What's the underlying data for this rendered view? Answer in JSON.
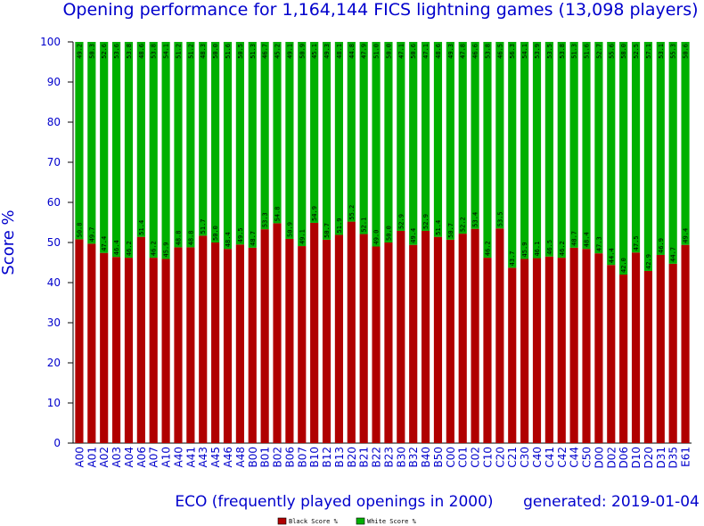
{
  "chart_data": {
    "type": "bar",
    "stacked": true,
    "title": "Opening performance for 1,164,144 FICS lightning games (13,098 players)",
    "xlabel": "ECO (frequently played openings in 2000)",
    "ylabel": "Score %",
    "generated": "generated: 2019-01-04",
    "ylim": [
      0,
      100
    ],
    "yticks": [
      0,
      10,
      20,
      30,
      40,
      50,
      60,
      70,
      80,
      90,
      100
    ],
    "grid": false,
    "legend_position": "bottom-center",
    "categories": [
      "A00",
      "A01",
      "A02",
      "A03",
      "A04",
      "A06",
      "A07",
      "A10",
      "A40",
      "A41",
      "A43",
      "A45",
      "A46",
      "A48",
      "B00",
      "B01",
      "B02",
      "B06",
      "B07",
      "B10",
      "B12",
      "B13",
      "B20",
      "B21",
      "B22",
      "B23",
      "B30",
      "B32",
      "B40",
      "B50",
      "C00",
      "C01",
      "C02",
      "C10",
      "C20",
      "C21",
      "C30",
      "C40",
      "C41",
      "C42",
      "C44",
      "C50",
      "D00",
      "D02",
      "D06",
      "D10",
      "D20",
      "D31",
      "D35",
      "E61"
    ],
    "series": [
      {
        "name": "Black Score %",
        "color": "#b00000",
        "values": [
          50.8,
          49.7,
          47.4,
          46.4,
          46.2,
          51.4,
          46.2,
          45.9,
          48.8,
          48.8,
          51.7,
          50.0,
          48.4,
          49.5,
          48.7,
          53.3,
          54.8,
          50.9,
          49.1,
          54.9,
          50.7,
          51.9,
          55.2,
          52.1,
          49.0,
          50.0,
          52.9,
          49.4,
          52.9,
          51.4,
          50.7,
          52.2,
          53.4,
          46.2,
          53.5,
          43.7,
          45.9,
          46.1,
          46.5,
          46.2,
          48.7,
          48.4,
          47.3,
          44.4,
          42.0,
          47.5,
          42.9,
          46.9,
          44.7,
          49.4
        ]
      },
      {
        "name": "White Score %",
        "color": "#00b000",
        "values": [
          49.2,
          50.3,
          52.6,
          53.6,
          53.8,
          48.6,
          53.8,
          54.1,
          51.2,
          51.2,
          48.3,
          50.0,
          51.6,
          50.5,
          51.3,
          46.7,
          45.2,
          49.1,
          50.9,
          45.1,
          49.3,
          48.1,
          44.8,
          47.9,
          51.0,
          50.0,
          47.1,
          50.6,
          47.1,
          48.6,
          49.3,
          47.8,
          46.6,
          53.8,
          46.5,
          56.3,
          54.1,
          53.9,
          53.5,
          53.8,
          51.3,
          51.6,
          52.7,
          55.6,
          58.0,
          52.5,
          57.1,
          53.1,
          55.3,
          50.6
        ]
      }
    ]
  },
  "legend": {
    "black_label": "Black Score %",
    "white_label": "White Score %"
  }
}
